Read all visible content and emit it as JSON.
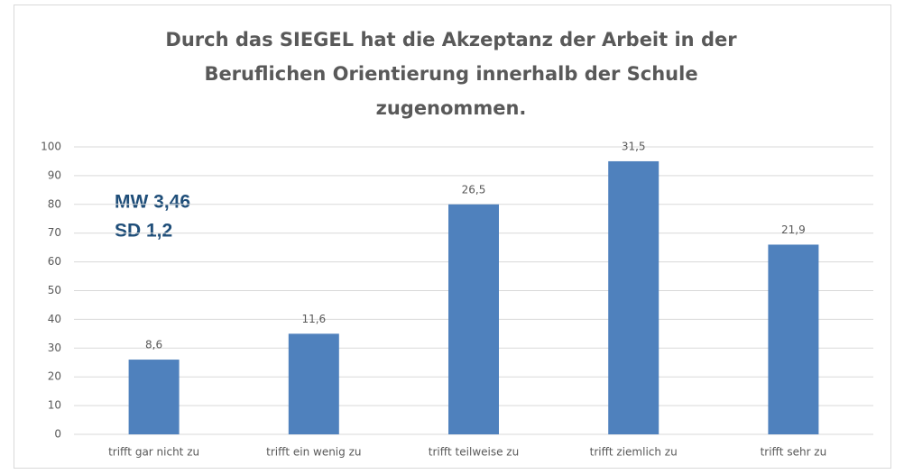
{
  "chart_data": {
    "type": "bar",
    "title": [
      "Durch das SIEGEL hat die Akzeptanz der Arbeit in der",
      "Beruflichen Orientierung innerhalb der Schule",
      "zugenommen."
    ],
    "annotations": [
      "MW 3,46",
      "SD 1,2"
    ],
    "categories": [
      "trifft gar nicht zu",
      "trifft ein wenig zu",
      "trifft teilweise zu",
      "trifft ziemlich zu",
      "trifft sehr zu"
    ],
    "values": [
      26,
      35,
      80,
      95,
      66
    ],
    "data_labels": [
      "8,6",
      "11,6",
      "26,5",
      "31,5",
      "21,9"
    ],
    "color": "#4f81bd",
    "ylim": [
      0,
      100
    ],
    "yticks": [
      0,
      10,
      20,
      30,
      40,
      50,
      60,
      70,
      80,
      90,
      100
    ],
    "grid": true
  }
}
